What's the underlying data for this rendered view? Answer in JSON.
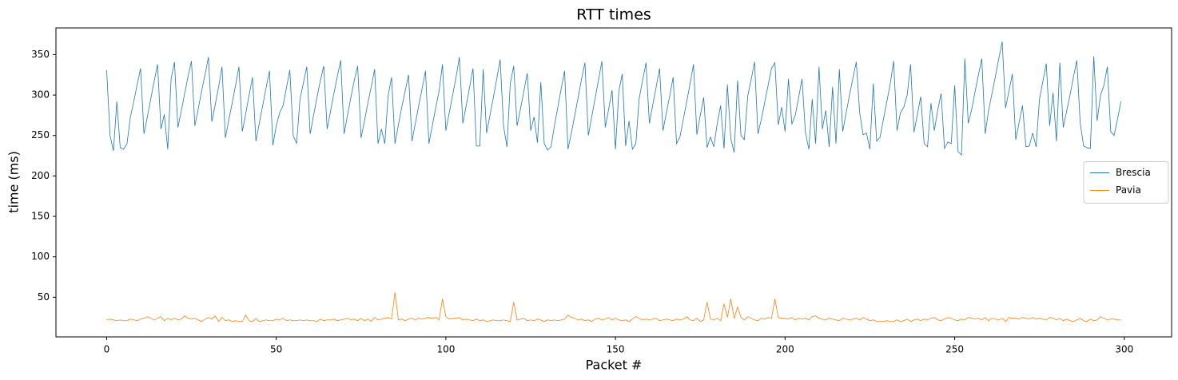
{
  "chart_data": {
    "type": "line",
    "title": "RTT times",
    "xlabel": "Packet #",
    "ylabel": "time (ms)",
    "x": [
      0,
      1,
      2,
      3,
      4,
      5,
      6,
      7,
      8,
      9,
      10,
      11,
      12,
      13,
      14,
      15,
      16,
      17,
      18,
      19,
      20,
      21,
      22,
      23,
      24,
      25,
      26,
      27,
      28,
      29,
      30,
      31,
      32,
      33,
      34,
      35,
      36,
      37,
      38,
      39,
      40,
      41,
      42,
      43,
      44,
      45,
      46,
      47,
      48,
      49,
      50,
      51,
      52,
      53,
      54,
      55,
      56,
      57,
      58,
      59,
      60,
      61,
      62,
      63,
      64,
      65,
      66,
      67,
      68,
      69,
      70,
      71,
      72,
      73,
      74,
      75,
      76,
      77,
      78,
      79,
      80,
      81,
      82,
      83,
      84,
      85,
      86,
      87,
      88,
      89,
      90,
      91,
      92,
      93,
      94,
      95,
      96,
      97,
      98,
      99,
      100,
      101,
      102,
      103,
      104,
      105,
      106,
      107,
      108,
      109,
      110,
      111,
      112,
      113,
      114,
      115,
      116,
      117,
      118,
      119,
      120,
      121,
      122,
      123,
      124,
      125,
      126,
      127,
      128,
      129,
      130,
      131,
      132,
      133,
      134,
      135,
      136,
      137,
      138,
      139,
      140,
      141,
      142,
      143,
      144,
      145,
      146,
      147,
      148,
      149,
      150,
      151,
      152,
      153,
      154,
      155,
      156,
      157,
      158,
      159,
      160,
      161,
      162,
      163,
      164,
      165,
      166,
      167,
      168,
      169,
      170,
      171,
      172,
      173,
      174,
      175,
      176,
      177,
      178,
      179,
      180,
      181,
      182,
      183,
      184,
      185,
      186,
      187,
      188,
      189,
      190,
      191,
      192,
      193,
      194,
      195,
      196,
      197,
      198,
      199,
      200,
      201,
      202,
      203,
      204,
      205,
      206,
      207,
      208,
      209,
      210,
      211,
      212,
      213,
      214,
      215,
      216,
      217,
      218,
      219,
      220,
      221,
      222,
      223,
      224,
      225,
      226,
      227,
      228,
      229,
      230,
      231,
      232,
      233,
      234,
      235,
      236,
      237,
      238,
      239,
      240,
      241,
      242,
      243,
      244,
      245,
      246,
      247,
      248,
      249,
      250,
      251,
      252,
      253,
      254,
      255,
      256,
      257,
      258,
      259,
      260,
      261,
      262,
      263,
      264,
      265,
      266,
      267,
      268,
      269,
      270,
      271,
      272,
      273,
      274,
      275,
      276,
      277,
      278,
      279,
      280,
      281,
      282,
      283,
      284,
      285,
      286,
      287,
      288,
      289,
      290,
      291,
      292,
      293,
      294,
      295,
      296,
      297,
      298,
      299
    ],
    "series": [
      {
        "name": "Brescia",
        "color": "#1f77b4",
        "values": [
          331,
          250,
          231,
          292,
          235,
          233,
          240,
          273,
          292,
          313,
          333,
          252,
          273,
          295,
          317,
          338,
          258,
          276,
          233,
          320,
          341,
          260,
          280,
          302,
          323,
          342,
          262,
          283,
          305,
          325,
          347,
          267,
          288,
          310,
          335,
          247,
          269,
          290,
          312,
          335,
          255,
          277,
          300,
          322,
          243,
          265,
          287,
          309,
          330,
          238,
          262,
          278,
          287,
          309,
          331,
          250,
          240,
          295,
          315,
          335,
          252,
          275,
          297,
          318,
          336,
          258,
          280,
          302,
          323,
          343,
          252,
          275,
          297,
          318,
          336,
          247,
          268,
          290,
          310,
          332,
          240,
          258,
          240,
          300,
          322,
          240,
          263,
          285,
          305,
          325,
          243,
          265,
          287,
          308,
          330,
          240,
          262,
          284,
          305,
          338,
          256,
          278,
          300,
          322,
          347,
          265,
          287,
          310,
          333,
          237,
          237,
          332,
          253,
          275,
          297,
          320,
          344,
          262,
          236,
          315,
          336,
          262,
          283,
          305,
          327,
          256,
          273,
          241,
          316,
          240,
          232,
          236,
          262,
          285,
          308,
          330,
          233,
          253,
          275,
          297,
          320,
          340,
          250,
          273,
          296,
          319,
          342,
          260,
          283,
          306,
          233,
          305,
          326,
          237,
          268,
          233,
          240,
          296,
          318,
          340,
          265,
          288,
          310,
          333,
          256,
          278,
          299,
          322,
          240,
          248,
          270,
          292,
          314,
          338,
          251,
          275,
          297,
          235,
          248,
          236,
          265,
          287,
          234,
          313,
          246,
          229,
          318,
          250,
          245,
          299,
          319,
          341,
          252,
          270,
          291,
          312,
          333,
          340,
          263,
          285,
          255,
          320,
          264,
          275,
          297,
          320,
          254,
          233,
          295,
          240,
          335,
          258,
          281,
          236,
          310,
          240,
          332,
          255,
          278,
          300,
          321,
          341,
          278,
          251,
          253,
          233,
          314,
          243,
          248,
          270,
          292,
          314,
          342,
          256,
          278,
          285,
          300,
          338,
          254,
          276,
          298,
          240,
          236,
          290,
          256,
          281,
          302,
          234,
          242,
          240,
          312,
          230,
          226,
          345,
          265,
          282,
          304,
          325,
          345,
          252,
          281,
          302,
          323,
          345,
          366,
          284,
          305,
          326,
          245,
          266,
          287,
          236,
          237,
          253,
          236,
          295,
          317,
          339,
          262,
          303,
          243,
          340,
          260,
          280,
          300,
          322,
          343,
          266,
          237,
          235,
          234,
          348,
          268,
          300,
          312,
          335,
          255,
          250,
          270,
          292
        ]
      },
      {
        "name": "Pavia",
        "color": "#ff7f0e",
        "values": [
          22,
          23,
          22,
          21,
          22,
          21,
          21,
          23,
          22,
          21,
          23,
          24,
          26,
          24,
          22,
          24,
          26,
          21,
          24,
          22,
          24,
          22,
          23,
          27,
          24,
          23,
          24,
          22,
          20,
          23,
          25,
          23,
          27,
          20,
          25,
          21,
          22,
          20,
          21,
          20,
          20,
          28,
          21,
          20,
          24,
          20,
          21,
          22,
          21,
          21,
          23,
          22,
          24,
          21,
          22,
          21,
          21,
          22,
          21,
          22,
          21,
          21,
          20,
          23,
          21,
          22,
          22,
          23,
          21,
          22,
          23,
          24,
          22,
          23,
          21,
          24,
          21,
          23,
          20,
          25,
          22,
          23,
          24,
          25,
          23,
          56,
          22,
          23,
          21,
          23,
          24,
          22,
          24,
          23,
          24,
          25,
          24,
          25,
          22,
          48,
          26,
          23,
          24,
          24,
          25,
          22,
          23,
          22,
          21,
          23,
          21,
          22,
          20,
          21,
          22,
          21,
          21,
          22,
          21,
          20,
          44,
          22,
          23,
          24,
          21,
          22,
          21,
          23,
          22,
          20,
          22,
          21,
          22,
          21,
          22,
          23,
          28,
          25,
          24,
          22,
          23,
          21,
          22,
          20,
          23,
          24,
          22,
          23,
          25,
          22,
          24,
          22,
          21,
          22,
          20,
          23,
          26,
          24,
          22,
          23,
          22,
          23,
          24,
          21,
          22,
          23,
          22,
          21,
          23,
          22,
          23,
          26,
          22,
          21,
          24,
          20,
          22,
          44,
          23,
          22,
          24,
          21,
          42,
          25,
          48,
          24,
          38,
          25,
          22,
          26,
          24,
          22,
          21,
          24,
          23,
          25,
          24,
          48,
          25,
          24,
          24,
          23,
          25,
          22,
          24,
          23,
          24,
          22,
          26,
          27,
          24,
          23,
          22,
          24,
          23,
          22,
          21,
          24,
          23,
          22,
          23,
          24,
          22,
          25,
          23,
          21,
          22,
          20,
          20,
          20,
          21,
          20,
          20,
          22,
          20,
          21,
          23,
          20,
          22,
          23,
          21,
          23,
          22,
          24,
          25,
          22,
          21,
          23,
          25,
          24,
          22,
          21,
          23,
          22,
          25,
          24,
          23,
          24,
          22,
          25,
          21,
          24,
          23,
          22,
          24,
          20,
          25,
          24,
          24,
          23,
          25,
          24,
          23,
          25,
          23,
          24,
          23,
          22,
          25,
          24,
          22,
          24,
          21,
          23,
          21,
          20,
          22,
          24,
          21,
          20,
          23,
          21,
          22,
          26,
          24,
          22,
          23,
          23,
          22,
          22
        ]
      }
    ],
    "xlim": [
      -14.95,
      313.95
    ],
    "ylim": [
      1,
      383
    ],
    "xticks": [
      0,
      50,
      100,
      150,
      200,
      250,
      300
    ],
    "yticks": [
      50,
      100,
      150,
      200,
      250,
      300,
      350
    ],
    "grid": false,
    "legend": "center right"
  }
}
